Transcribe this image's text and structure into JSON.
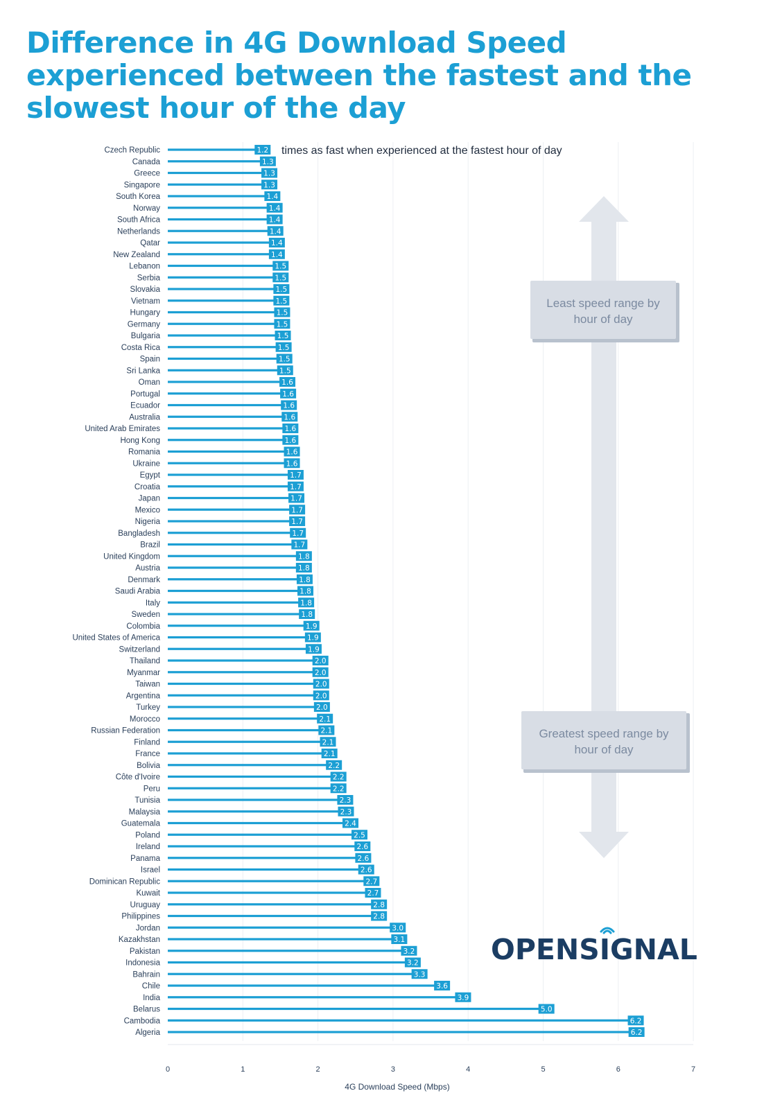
{
  "title": "Difference in 4G Download Speed experienced between the fastest and the slowest hour of the day",
  "annotation": "times as fast when experienced at the fastest hour of day",
  "box_top": [
    "Least speed range by",
    "hour of day"
  ],
  "box_bottom": [
    "Greatest speed range by",
    "hour of day"
  ],
  "logo": {
    "pre": "OPENS",
    "i": "I",
    "post": "GNAL"
  },
  "colors": {
    "bar": "#1c9fd4",
    "title": "#1c9fd4",
    "logo": "#1b3d63",
    "arrow": "#e2e6ec",
    "box": "#d8dde5"
  },
  "chart_data": {
    "type": "bar",
    "orientation": "horizontal",
    "title": "Difference in 4G Download Speed experienced between the fastest and the slowest hour of the day",
    "xlabel": "4G Download Speed (Mbps)",
    "ylabel": "",
    "xlim": [
      0,
      7
    ],
    "xticks": [
      0,
      1,
      2,
      3,
      4,
      5,
      6,
      7
    ],
    "grid": true,
    "categories": [
      "Czech Republic",
      "Canada",
      "Greece",
      "Singapore",
      "South Korea",
      "Norway",
      "South Africa",
      "Netherlands",
      "Qatar",
      "New Zealand",
      "Lebanon",
      "Serbia",
      "Slovakia",
      "Vietnam",
      "Hungary",
      "Germany",
      "Bulgaria",
      "Costa Rica",
      "Spain",
      "Sri Lanka",
      "Oman",
      "Portugal",
      "Ecuador",
      "Australia",
      "United Arab Emirates",
      "Hong Kong",
      "Romania",
      "Ukraine",
      "Egypt",
      "Croatia",
      "Japan",
      "Mexico",
      "Nigeria",
      "Bangladesh",
      "Brazil",
      "United Kingdom",
      "Austria",
      "Denmark",
      "Saudi Arabia",
      "Italy",
      "Sweden",
      "Colombia",
      "United States of America",
      "Switzerland",
      "Thailand",
      "Myanmar",
      "Taiwan",
      "Argentina",
      "Turkey",
      "Morocco",
      "Russian Federation",
      "Finland",
      "France",
      "Bolivia",
      "Côte d'Ivoire",
      "Peru",
      "Tunisia",
      "Malaysia",
      "Guatemala",
      "Poland",
      "Ireland",
      "Panama",
      "Israel",
      "Dominican Republic",
      "Kuwait",
      "Uruguay",
      "Philippines",
      "Jordan",
      "Kazakhstan",
      "Pakistan",
      "Indonesia",
      "Bahrain",
      "Chile",
      "India",
      "Belarus",
      "Cambodia",
      "Algeria"
    ],
    "values": [
      1.24,
      1.31,
      1.33,
      1.33,
      1.37,
      1.4,
      1.4,
      1.41,
      1.43,
      1.43,
      1.48,
      1.48,
      1.49,
      1.49,
      1.5,
      1.5,
      1.51,
      1.52,
      1.53,
      1.54,
      1.57,
      1.58,
      1.59,
      1.6,
      1.61,
      1.61,
      1.63,
      1.63,
      1.68,
      1.68,
      1.69,
      1.7,
      1.7,
      1.71,
      1.73,
      1.79,
      1.79,
      1.8,
      1.81,
      1.82,
      1.83,
      1.89,
      1.91,
      1.92,
      2.01,
      2.01,
      2.02,
      2.02,
      2.03,
      2.07,
      2.09,
      2.11,
      2.13,
      2.19,
      2.25,
      2.25,
      2.34,
      2.35,
      2.41,
      2.53,
      2.57,
      2.58,
      2.62,
      2.69,
      2.71,
      2.79,
      2.79,
      3.04,
      3.06,
      3.19,
      3.24,
      3.33,
      3.63,
      3.91,
      5.02,
      6.21,
      6.22
    ],
    "value_labels": [
      "1.2",
      "1.3",
      "1.3",
      "1.3",
      "1.4",
      "1.4",
      "1.4",
      "1.4",
      "1.4",
      "1.4",
      "1.5",
      "1.5",
      "1.5",
      "1.5",
      "1.5",
      "1.5",
      "1.5",
      "1.5",
      "1.5",
      "1.5",
      "1.6",
      "1.6",
      "1.6",
      "1.6",
      "1.6",
      "1.6",
      "1.6",
      "1.6",
      "1.7",
      "1.7",
      "1.7",
      "1.7",
      "1.7",
      "1.7",
      "1.7",
      "1.8",
      "1.8",
      "1.8",
      "1.8",
      "1.8",
      "1.8",
      "1.9",
      "1.9",
      "1.9",
      "2.0",
      "2.0",
      "2.0",
      "2.0",
      "2.0",
      "2.1",
      "2.1",
      "2.1",
      "2.1",
      "2.2",
      "2.2",
      "2.2",
      "2.3",
      "2.3",
      "2.4",
      "2.5",
      "2.6",
      "2.6",
      "2.6",
      "2.7",
      "2.7",
      "2.8",
      "2.8",
      "3.0",
      "3.1",
      "3.2",
      "3.2",
      "3.3",
      "3.6",
      "3.9",
      "5.0",
      "6.2",
      "6.2"
    ]
  }
}
